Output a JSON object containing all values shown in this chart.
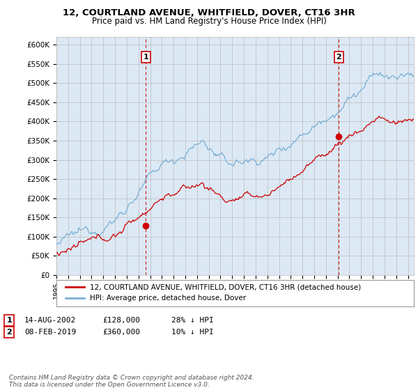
{
  "title": "12, COURTLAND AVENUE, WHITFIELD, DOVER, CT16 3HR",
  "subtitle": "Price paid vs. HM Land Registry's House Price Index (HPI)",
  "ylim": [
    0,
    620000
  ],
  "yticks": [
    0,
    50000,
    100000,
    150000,
    200000,
    250000,
    300000,
    350000,
    400000,
    450000,
    500000,
    550000,
    600000
  ],
  "ytick_labels": [
    "£0",
    "£50K",
    "£100K",
    "£150K",
    "£200K",
    "£250K",
    "£300K",
    "£350K",
    "£400K",
    "£450K",
    "£500K",
    "£550K",
    "£600K"
  ],
  "sale1_date_num": 2002.62,
  "sale1_price": 128000,
  "sale2_date_num": 2019.1,
  "sale2_price": 360000,
  "hpi_color": "#7aafd4",
  "price_color": "#cc0000",
  "vline_color": "#cc0000",
  "grid_color": "#bbbbbb",
  "chart_bg": "#dce9f5",
  "background_color": "#ffffff",
  "legend_label_price": "12, COURTLAND AVENUE, WHITFIELD, DOVER, CT16 3HR (detached house)",
  "legend_label_hpi": "HPI: Average price, detached house, Dover",
  "footer": "Contains HM Land Registry data © Crown copyright and database right 2024.\nThis data is licensed under the Open Government Licence v3.0.",
  "xmin": 1995.0,
  "xmax": 2025.5,
  "title_fontsize": 9.5,
  "subtitle_fontsize": 8.5
}
